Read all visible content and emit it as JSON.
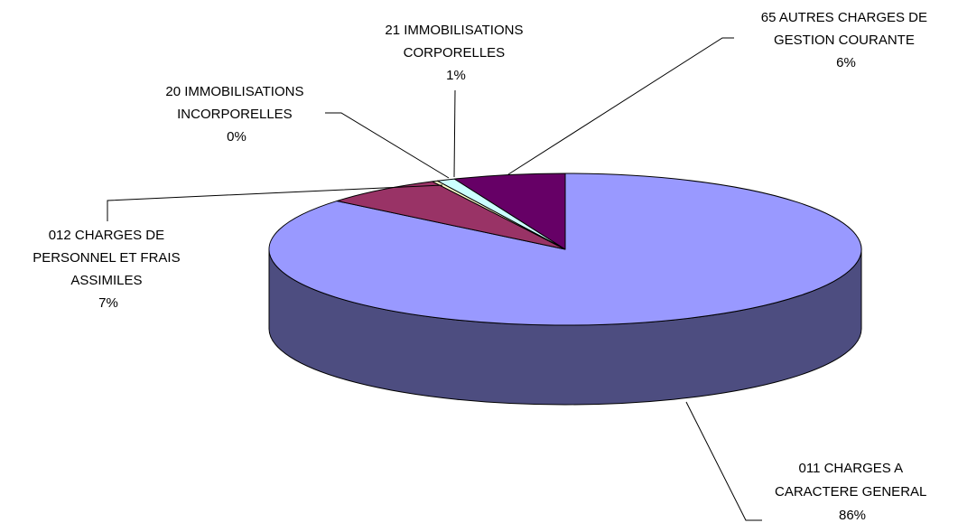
{
  "chart_data": {
    "type": "pie",
    "title": "",
    "three_d": true,
    "legend": "none",
    "slices": [
      {
        "label_lines": [
          "011 CHARGES A",
          "CARACTERE GENERAL"
        ],
        "percent_label": "86%",
        "value": 86.0,
        "color": "#9999FF",
        "side_color": "#4D4D80"
      },
      {
        "label_lines": [
          "012 CHARGES DE",
          "PERSONNEL ET FRAIS",
          "ASSIMILES"
        ],
        "percent_label": "7%",
        "value": 6.6,
        "color": "#993366",
        "side_color": "#4D1A33"
      },
      {
        "label_lines": [
          "20 IMMOBILISATIONS",
          "INCORPORELLES"
        ],
        "percent_label": "0%",
        "value": 0.3,
        "color": "#FFFFCC",
        "side_color": "#808066"
      },
      {
        "label_lines": [
          "21 IMMOBILISATIONS",
          "CORPORELLES"
        ],
        "percent_label": "1%",
        "value": 1.0,
        "color": "#CCFFFF",
        "side_color": "#668080"
      },
      {
        "label_lines": [
          "65 AUTRES CHARGES DE",
          "GESTION COURANTE"
        ],
        "percent_label": "6%",
        "value": 6.1,
        "color": "#660066",
        "side_color": "#330033"
      }
    ]
  }
}
